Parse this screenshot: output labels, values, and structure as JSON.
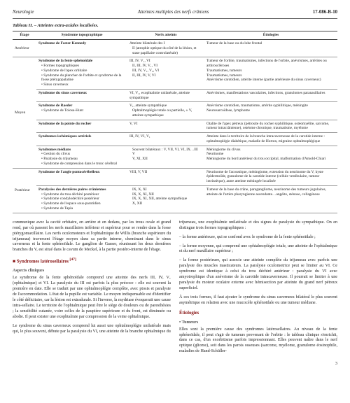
{
  "header": {
    "left": "Neurologie",
    "center": "Atteintes multiples des nerfs crâniens",
    "right": "17-086-B-10"
  },
  "table": {
    "caption": "Tableau II. – Atteintes extra-axiales localisées.",
    "columns": [
      "Étage",
      "Syndrome topographique",
      "Nerfs atteints",
      "Étiologies"
    ],
    "groups": [
      {
        "stage": "Antérieur",
        "rows": [
          {
            "syn": "Syndrome de Foster Kennedy",
            "sub": [],
            "nerfs": "Atteinte bilatérale des I",
            "nerfs_sub": [
              "II (atrophie optique du côté de la lésion, et stase papillaire controlatérale)"
            ],
            "etio": [
              "Tumeur de la base ou du lobe frontal"
            ]
          }
        ]
      },
      {
        "stage": "Moyen",
        "rows": [
          {
            "syn": "Syndrome de la fente sphénoïdale",
            "sub": [
              "• Formes topographiques",
              "• Syndrome de l'apex orbitaire",
              "• Syndrome du plancher de l'orbite et syndrome de la fosse ptérygopalatine",
              "• Sinus caverneux"
            ],
            "nerfs": "III, IV, V₁, VI",
            "nerfs_sub": [
              "II, III, IV, V₁, VI",
              "III, IV, V₁, V₂, VI",
              "II, III, IV, V, VI"
            ],
            "etio": [
              "Tumeur de l'orbite, traumatismes, infections de l'orbite, anévrismes, artérites ou arthroscléroses",
              "Traumatismes, tumeurs",
              "Traumatismes, tumeurs",
              "Anévrisme carotidien, artérite interne (partie antérieure du sinus caverneux)"
            ]
          },
          {
            "syn": "Syndrome du sinus caverneux",
            "sub": [],
            "nerfs": "VI, V₁, exophtalmie unilatérale, atteinte sympathique",
            "nerfs_sub": [],
            "etio": [
              "Anévrismes, manifestations vasculaires, infections, granulomes paranasillaires"
            ]
          },
          {
            "syn": "Syndrome de Raeder",
            "sub": [
              "• Syndrome de Tolosa-Hunt"
            ],
            "nerfs": "V₁, atteinte sympathique",
            "nerfs_sub": [
              "Ophtalmoplégie totale ou partielle, ± V, atteinte sympathique"
            ],
            "etio": [
              "Anévrisme carotidien, traumatisme, artérite syphilitique, méningite",
              "Neurosarcoïdose, lymphome"
            ]
          },
          {
            "syn": "Syndrome de la pointe du rocher",
            "sub": [],
            "nerfs": "V, VI",
            "nerfs_sub": [],
            "etio": [
              "Otalite de l'apex pétreux (pétrosite du rocher syphilitique, ostéomyélite, sarcome, tumeur intracrânienne), ostéome chronique, traumatisme, myélome"
            ]
          },
          {
            "syn": "Syndromes ischémiques artériels",
            "sub": [],
            "nerfs": "III, IV, VI, V₁",
            "nerfs_sub": [],
            "etio": [
              "Atteinte dans le territoire de la branche intracaverneuse de la carotide interne : ophtalmoplégie diabétique, maladie de Horton, migraine ophtalmoplégique"
            ]
          },
          {
            "syn": "Syndromes médians",
            "sub": [
              "• Gestion du clivus",
              "• Paralysie du trijumeau",
              "• Syndrome de compression dans le tronc cérébral"
            ],
            "nerfs": "",
            "nerfs_sub": [
              "Souvent bilatéraux : V, VII, VI, VI, IX…III",
              "V",
              "V, XI, XII"
            ],
            "etio": [
              "Méningiome du clivus",
              "Neurinome",
              "Méningiome du bord antérieur du trou occipital, malformation d'Arnold-Chiari"
            ]
          }
        ]
      },
      {
        "stage": "Postérieur",
        "rows": [
          {
            "syn": "Syndrome de l'angle pontocérébelleux",
            "sub": [],
            "nerfs": "VIII, V, VII",
            "nerfs_sub": [],
            "etio": [
              "Neurinome de l'acoustique, méningiome, extension du neurinome du V, kyste épidermoïde, granulome de la carotide interne (cellule vestibulaire, tumeur intrinsèque), autre atteinte méningée localisée"
            ]
          },
          {
            "syn": "Paralysies des dernières paires crâniennes",
            "sub": [
              "• Syndrome du trou déchiré postérieur",
              "• Syndrome condylodéchiré postérieur",
              "• Syndrome de l'espace sous-parotidien",
              "• Syndrome de Tapia"
            ],
            "nerfs": "",
            "nerfs_sub": [
              "IX, X, XI",
              "IX, X, XI, XII",
              "IX, X, XI, XII, atteinte sympathique",
              "X, XII"
            ],
            "etio": [
              "Tumeur de la base du crâne, paragangliome, neurinome des tumeurs jugulaires, atteinte de l'artère pharyngienne ascendante…angéite, sténose, collagénose"
            ]
          }
        ]
      }
    ]
  },
  "body": {
    "left": [
      "communique avec la cavité orbitaire, en arrière et en dedans, par les trous ovale et grand rond, par où passent les nerfs maxillaires inférieur et supérieur pour se rendre dans la fosse ptérygomaxillaire. Les nerfs oculomoteurs et l'ophtalmique de Willis (branche supérieure du trijumeau) traversent l'étage moyen dans sa partie interne, cheminant dans le sinus caverneux et la fente sphénoïdale. Le ganglion de Gasser, réunissant les deux dernières branches du V, est situé dans le cavum de Meckel, à la partie postéro-interne de l'étage."
    ],
    "h3a": "Syndromes latérosellaires",
    "h3a_ref": " [47]",
    "h4a": "Aspects cliniques",
    "left2": [
      "Le syndrome de la fente sphénoïdale comprend une atteinte des nerfs III, IV, V₁ (ophtalmique) et VI. La paralysie du III est parfois la plus précoce : elle est souvent la première en date. Elle se traduit par une ophtalmoplégie complète, avec ptosis et paralysie de l'accommodation. L'état de la pupille est variable. Le moyen indispensable est d'identifier le côté déficitaire, car la lésion est extradurale. Si l'inverse, la mydriase évoquerait une cause intra-sellaire. Le territoire de l'ophtalmique peut être le siège de douleurs ou de paresthésies ; la sensibilité cutanée, voire celles de la paupière supérieure et du front, est diminuée ou abolie. Il peut exister une exophtalmie par compression de la veine ophtalmique.",
      "Le syndrome du sinus caverneux comprend lui aussi une ophtalmoplégie unilatérale mais qui, le plus souvent, débute par la paralysie du VI, une atteinte de la branche ophtalmique du"
    ],
    "right": [
      "trijumeau, une exophtalmie unilatérale et des signes de paralysie du sympathique. On en distingue trois formes topographiques :",
      "– la forme antérieure, qui se confond avec le syndrome de la fente sphénoïdale ;",
      "– la forme moyenne, qui comprend une ophtalmoplégie totale, une atteinte de l'ophtalmique et du nerf maxillaire supérieur ;",
      "– la forme postérieure, qui associe une atteinte complète du trijumeau avec parfois une paralysie des muscles masticateurs. La paralysie oculomotrice peut se limiter au VI. Ce syndrome est identique à celui du trou déchiré antérieur : paralysie du VI avec amyotrophique d'un anévrisme de la carotide intracaverneuse. Il pourrait se limiter à une paralysie du moteur oculaire externe avec hémisection par atteinte du grand nerf pétreux superficiel.",
      "À ces trois formes, il faut ajouter le syndrome du sinus caverneux bilatéral le plus souvent asymétrique en relation avec une mucocèle sphénoïdale ou une tumeur médiane."
    ],
    "h3b": "Étiologies",
    "h4b": "• Tumeurs",
    "right2": [
      "Elles sont la première cause des syndromes latérosellaires. Au niveau de la fente sphénoïdale, il peut s'agir de tumeurs provenant de l'orbite : le tableau clinique s'enrichit, dans ce cas, d'un exorbitisme parfois impressionnant. Elles peuvent naître dans le nerf optique (gliome), soit dans les parois osseuses (sarcome, myélome, granulome éosinophile, maladies de Hand-Schüller-"
    ]
  },
  "pagenum": "3"
}
